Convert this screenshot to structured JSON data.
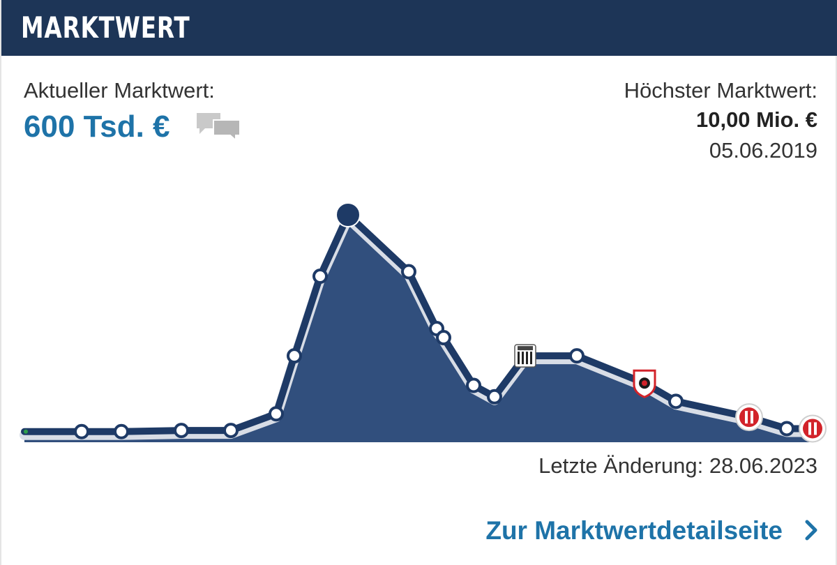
{
  "header": {
    "title": "MARKTWERT"
  },
  "current": {
    "label": "Aktueller Marktwert:",
    "value": "600 Tsd. €"
  },
  "highest": {
    "label": "Höchster Marktwert:",
    "value": "10,00 Mio. €",
    "date": "05.06.2019"
  },
  "last_change": "Letzte Änderung: 28.06.2023",
  "detail_link": "Zur Marktwertdetailseite",
  "icons": {
    "comments": "speech-bubbles-icon",
    "chevron": "chevron-right-icon"
  },
  "colors": {
    "header_bg": "#1d3557",
    "area_fill": "#314f7d",
    "line": "#1e3a66",
    "accent": "#1e73a8",
    "club_red": "#d2232a"
  },
  "chart_data": {
    "type": "area",
    "title": "",
    "xlabel": "",
    "ylabel": "",
    "ylim": [
      0,
      10
    ],
    "grid": false,
    "series": [
      {
        "values": [
          0.1,
          0.1,
          0.1,
          0.15,
          0.15,
          1.25,
          3.8,
          7.3,
          10.0,
          7.5,
          5.0,
          4.6,
          2.5,
          2.0,
          3.8,
          3.8,
          2.6,
          1.8,
          1.1,
          0.6,
          0.6
        ]
      }
    ],
    "club_markers": [
      {
        "index": 14,
        "icon": "club-crest-black-white-icon"
      },
      {
        "index": 16,
        "icon": "club-crest-red-shield-icon"
      },
      {
        "index": 18,
        "icon": "club-crest-red-round-icon"
      },
      {
        "index": 20,
        "icon": "club-crest-red-round-icon"
      }
    ]
  }
}
